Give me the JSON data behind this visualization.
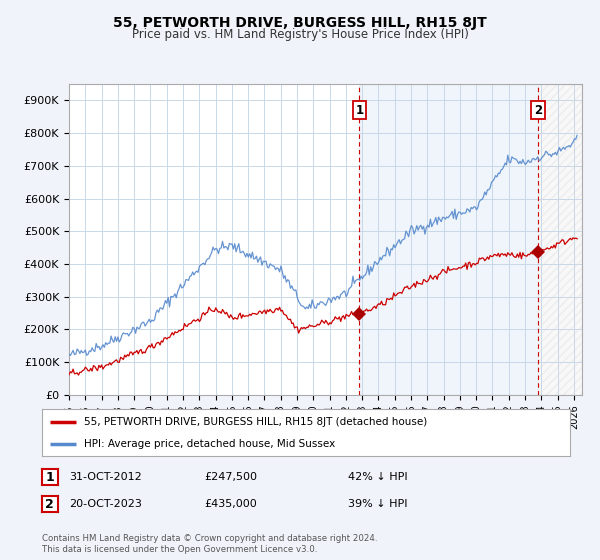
{
  "title": "55, PETWORTH DRIVE, BURGESS HILL, RH15 8JT",
  "subtitle": "Price paid vs. HM Land Registry's House Price Index (HPI)",
  "ylabel_ticks": [
    "£0",
    "£100K",
    "£200K",
    "£300K",
    "£400K",
    "£500K",
    "£600K",
    "£700K",
    "£800K",
    "£900K"
  ],
  "ytick_values": [
    0,
    100000,
    200000,
    300000,
    400000,
    500000,
    600000,
    700000,
    800000,
    900000
  ],
  "ylim": [
    0,
    950000
  ],
  "xlim_start": 1995.0,
  "xlim_end": 2026.5,
  "sale1_x": 2012.83,
  "sale1_y": 247500,
  "sale1_label": "1",
  "sale2_x": 2023.79,
  "sale2_y": 435000,
  "sale2_label": "2",
  "hpi_line_color": "#5588cc",
  "price_line_color": "#cc0000",
  "marker_color": "#aa0000",
  "vline_color": "#cc0000",
  "hpi_label": "HPI: Average price, detached house, Mid Sussex",
  "price_label": "55, PETWORTH DRIVE, BURGESS HILL, RH15 8JT (detached house)",
  "annotation1_date": "31-OCT-2012",
  "annotation1_price": "£247,500",
  "annotation1_hpi": "42% ↓ HPI",
  "annotation2_date": "20-OCT-2023",
  "annotation2_price": "£435,000",
  "annotation2_hpi": "39% ↓ HPI",
  "footer": "Contains HM Land Registry data © Crown copyright and database right 2024.\nThis data is licensed under the Open Government Licence v3.0.",
  "background_color": "#f0f4fa",
  "plot_bg_color": "#ffffff",
  "grid_color": "#c8d8e8",
  "shade_color": "#ddeeff",
  "hatch_color": "#cccccc"
}
